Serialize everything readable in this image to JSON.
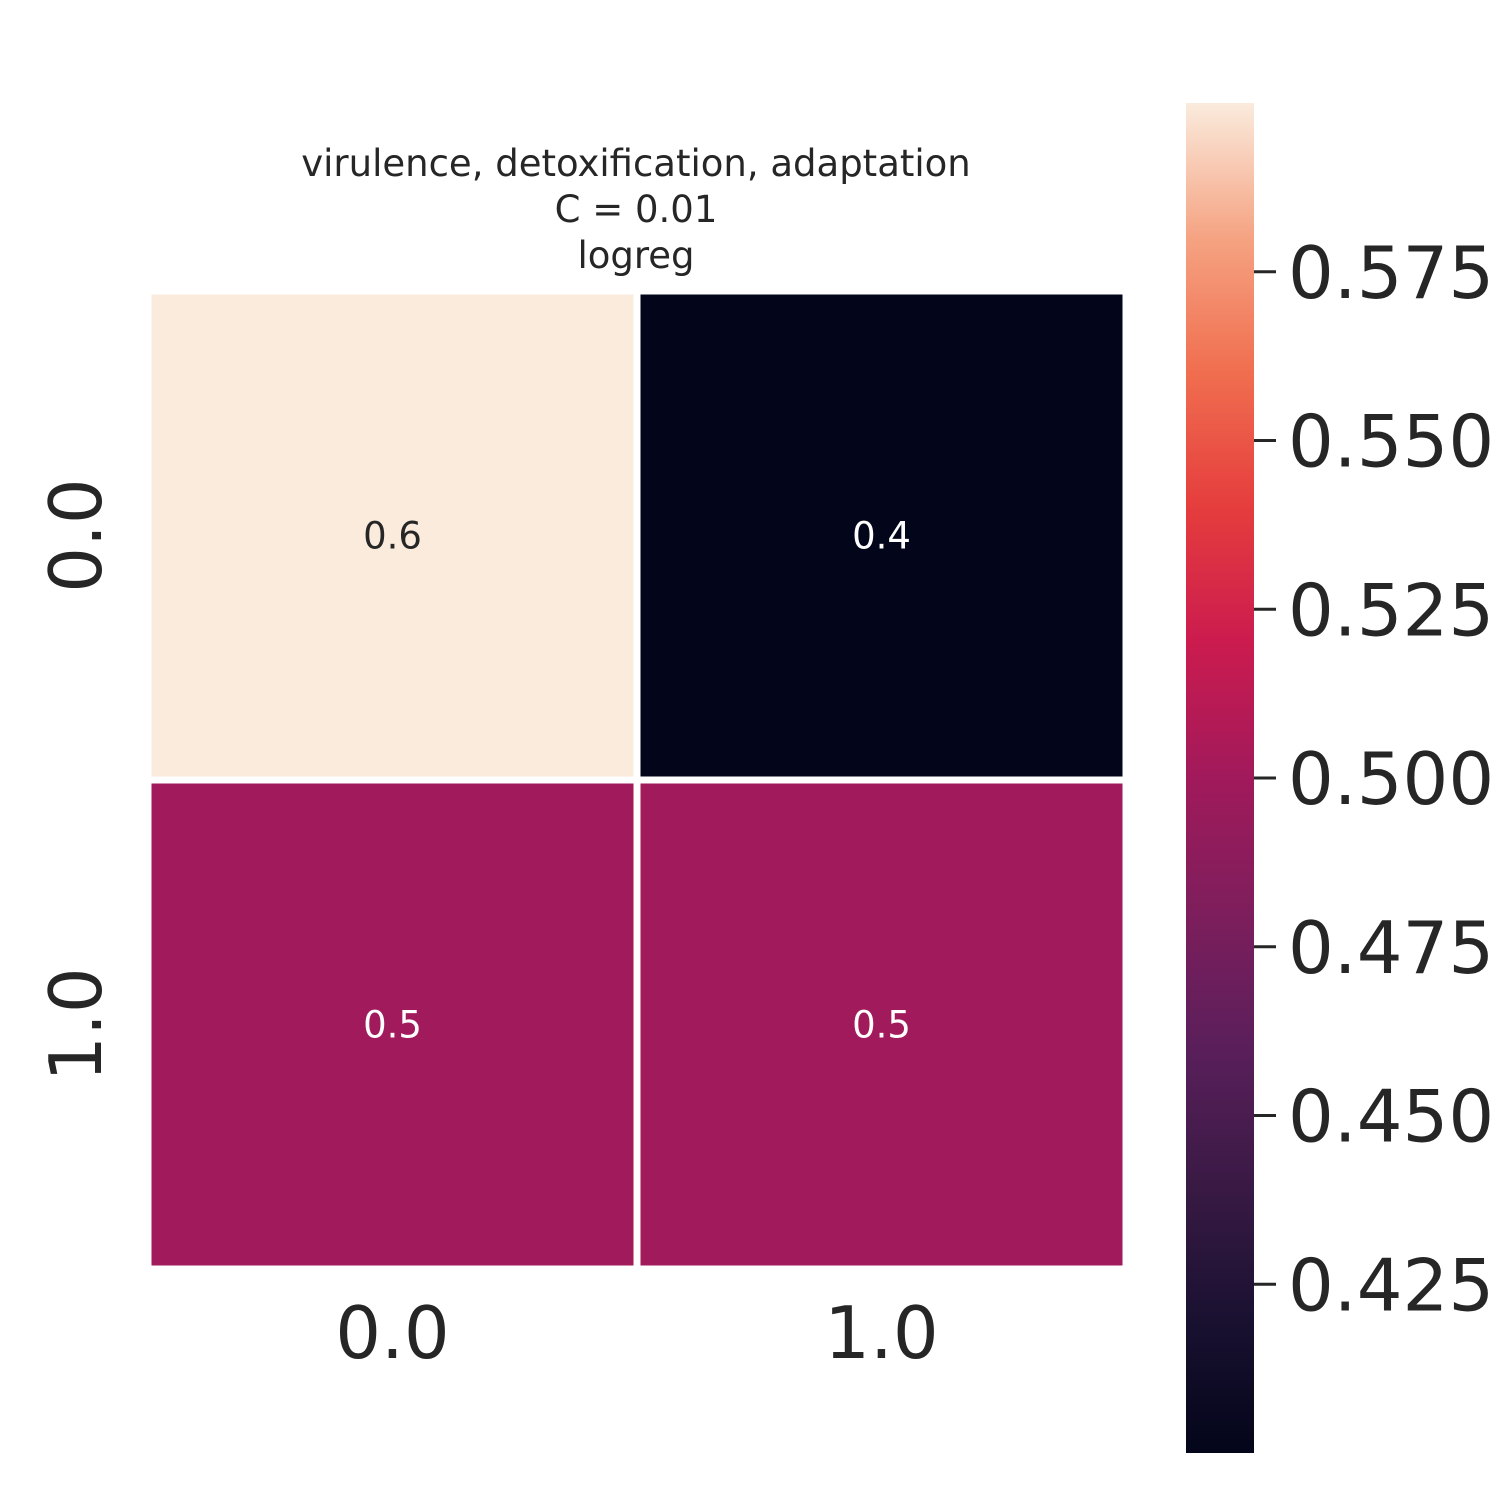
{
  "chart_data": {
    "type": "heatmap",
    "title_lines": [
      "virulence, detoxification, adaptation",
      "C = 0.01",
      "logreg"
    ],
    "x_tick_labels": [
      "0.0",
      "1.0"
    ],
    "y_tick_labels": [
      "0.0",
      "1.0"
    ],
    "values": [
      [
        0.6,
        0.4
      ],
      [
        0.5,
        0.5
      ]
    ],
    "cell_labels": [
      [
        "0.6",
        "0.4"
      ],
      [
        "0.5",
        "0.5"
      ]
    ],
    "colorbar": {
      "range": [
        0.4,
        0.6
      ],
      "ticks": [
        0.425,
        0.45,
        0.475,
        0.5,
        0.525,
        0.55,
        0.575
      ],
      "tick_labels": [
        "0.425",
        "0.450",
        "0.475",
        "0.500",
        "0.525",
        "0.550",
        "0.575"
      ],
      "colormap": "rocket"
    },
    "colors": {
      "cell_text_dark": "#262626",
      "cell_text_light": "#ffffff",
      "tick_text": "#262626",
      "cell_border": "#ffffff"
    }
  }
}
